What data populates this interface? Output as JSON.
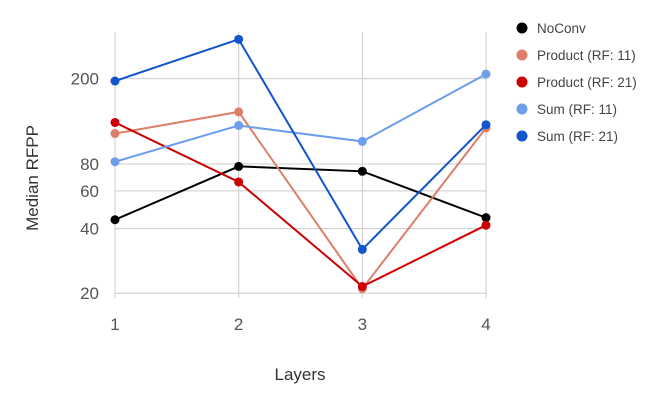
{
  "chart_data": {
    "type": "line",
    "xlabel": "Layers",
    "ylabel": "Median RFPP",
    "yscale": "log",
    "ylim": [
      19,
      330
    ],
    "x": [
      1,
      2,
      3,
      4
    ],
    "x_ticks": [
      "1",
      "2",
      "3",
      "4"
    ],
    "y_ticks": [
      20,
      40,
      60,
      80,
      200
    ],
    "grid": true,
    "legend_position": "right",
    "series": [
      {
        "name": "NoConv",
        "color": "#000000",
        "values": [
          44,
          78,
          74,
          45
        ]
      },
      {
        "name": "Product (RF: 11)",
        "color": "#dd7e6b",
        "values": [
          111,
          140,
          21,
          118
        ]
      },
      {
        "name": "Product (RF: 21)",
        "color": "#cc0000",
        "values": [
          125,
          66,
          21.5,
          41.5
        ]
      },
      {
        "name": "Sum (RF: 11)",
        "color": "#6d9eeb",
        "values": [
          82,
          121,
          102,
          210
        ]
      },
      {
        "name": "Sum (RF: 21)",
        "color": "#1155cc",
        "values": [
          195,
          305,
          32,
          122
        ]
      }
    ]
  }
}
